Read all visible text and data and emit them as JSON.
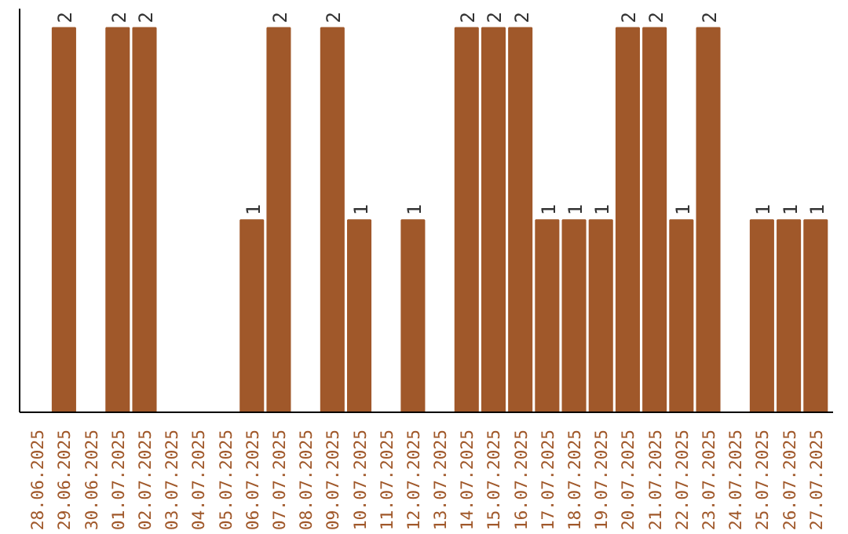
{
  "chart_data": {
    "type": "bar",
    "categories": [
      "28.06.2025",
      "29.06.2025",
      "30.06.2025",
      "01.07.2025",
      "02.07.2025",
      "03.07.2025",
      "04.07.2025",
      "05.07.2025",
      "06.07.2025",
      "07.07.2025",
      "08.07.2025",
      "09.07.2025",
      "10.07.2025",
      "11.07.2025",
      "12.07.2025",
      "13.07.2025",
      "14.07.2025",
      "15.07.2025",
      "16.07.2025",
      "17.07.2025",
      "18.07.2025",
      "19.07.2025",
      "20.07.2025",
      "21.07.2025",
      "22.07.2025",
      "23.07.2025",
      "24.07.2025",
      "25.07.2025",
      "26.07.2025",
      "27.07.2025"
    ],
    "values": [
      0,
      2,
      0,
      2,
      2,
      0,
      0,
      0,
      1,
      2,
      0,
      2,
      1,
      0,
      1,
      0,
      2,
      2,
      2,
      1,
      1,
      1,
      2,
      2,
      1,
      2,
      0,
      1,
      1,
      1
    ],
    "value_labels": [
      null,
      "2",
      null,
      "2",
      "2",
      null,
      null,
      null,
      "1",
      "2",
      null,
      "2",
      "1",
      null,
      "1",
      null,
      "2",
      "2",
      "2",
      "1",
      "1",
      "1",
      "2",
      "2",
      "1",
      "2",
      null,
      "1",
      "1",
      "1"
    ],
    "color": "#a0582a",
    "grid": false
  }
}
